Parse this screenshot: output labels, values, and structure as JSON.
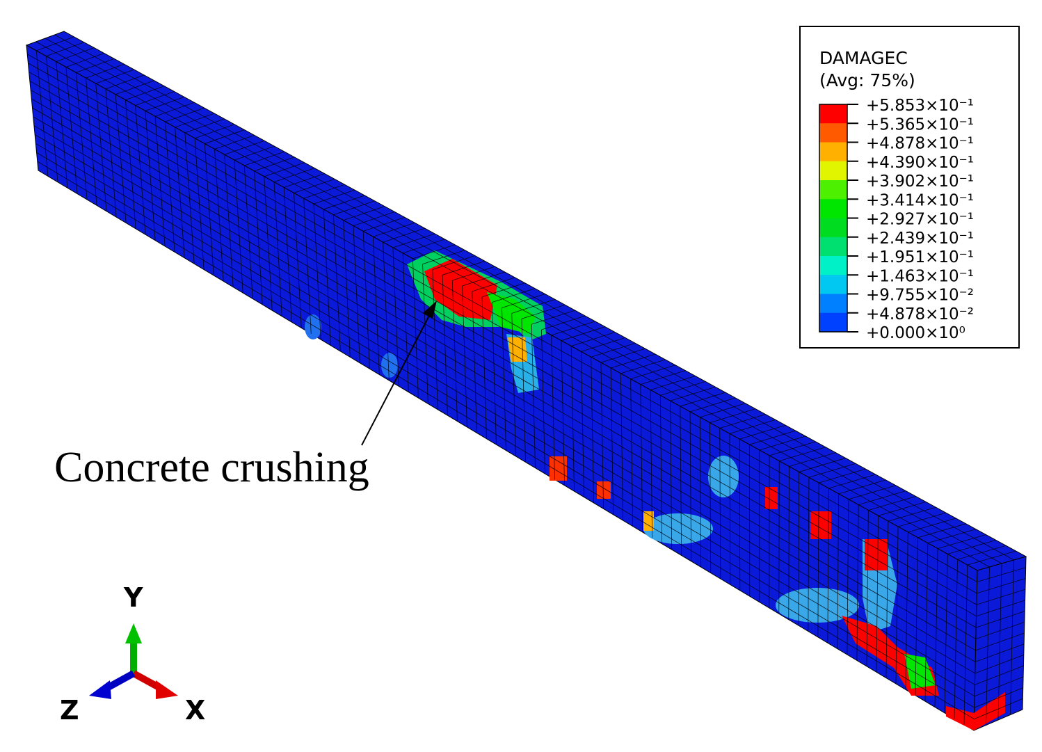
{
  "legend": {
    "title": "DAMAGEC",
    "subtitle": "(Avg: 75%)",
    "labels": [
      "+5.853×10⁻¹",
      "+5.365×10⁻¹",
      "+4.878×10⁻¹",
      "+4.390×10⁻¹",
      "+3.902×10⁻¹",
      "+3.414×10⁻¹",
      "+2.927×10⁻¹",
      "+2.439×10⁻¹",
      "+1.951×10⁻¹",
      "+1.463×10⁻¹",
      "+9.755×10⁻²",
      "+4.878×10⁻²",
      "+0.000×10⁰"
    ],
    "colors": [
      "#ff0000",
      "#ff5a00",
      "#ffb000",
      "#e2f500",
      "#4cf000",
      "#00e600",
      "#00dc20",
      "#00e070",
      "#00f0c8",
      "#00c8f0",
      "#0080ff",
      "#0040ff"
    ]
  },
  "annotation": "Concrete crushing",
  "triad": {
    "y": "Y",
    "x": "X",
    "z": "Z"
  }
}
